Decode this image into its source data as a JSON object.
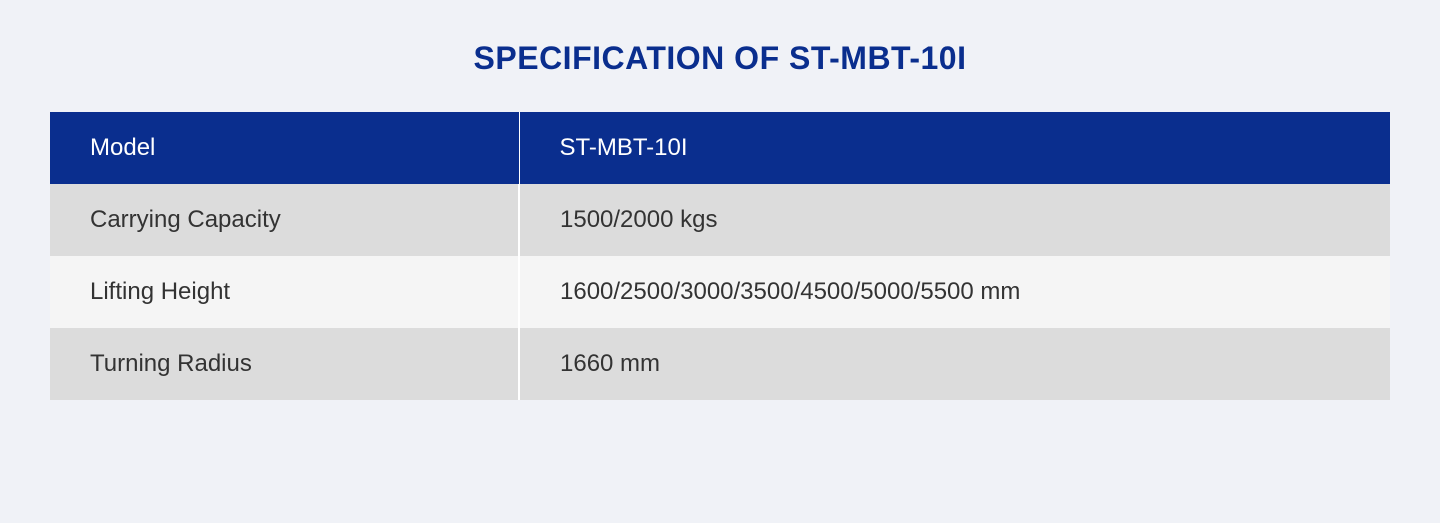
{
  "title": "SPECIFICATION OF ST-MBT-10I",
  "table": {
    "header": {
      "label": "Model",
      "value": "ST-MBT-10I"
    },
    "rows": [
      {
        "label": "Carrying Capacity",
        "value": "1500/2000 kgs"
      },
      {
        "label": "Lifting Height",
        "value": "1600/2500/3000/3500/4500/5000/5500 mm"
      },
      {
        "label": "Turning Radius",
        "value": "1660 mm"
      }
    ]
  },
  "colors": {
    "background": "#f0f2f7",
    "title": "#0a2e8e",
    "header_bg": "#0a2e8e",
    "header_text": "#ffffff",
    "row_odd_bg": "#dcdcdc",
    "row_even_bg": "#f5f5f5",
    "row_text": "#333333",
    "divider": "#ffffff"
  },
  "typography": {
    "title_fontsize": 32,
    "cell_fontsize": 24,
    "font_family": "Arial"
  }
}
